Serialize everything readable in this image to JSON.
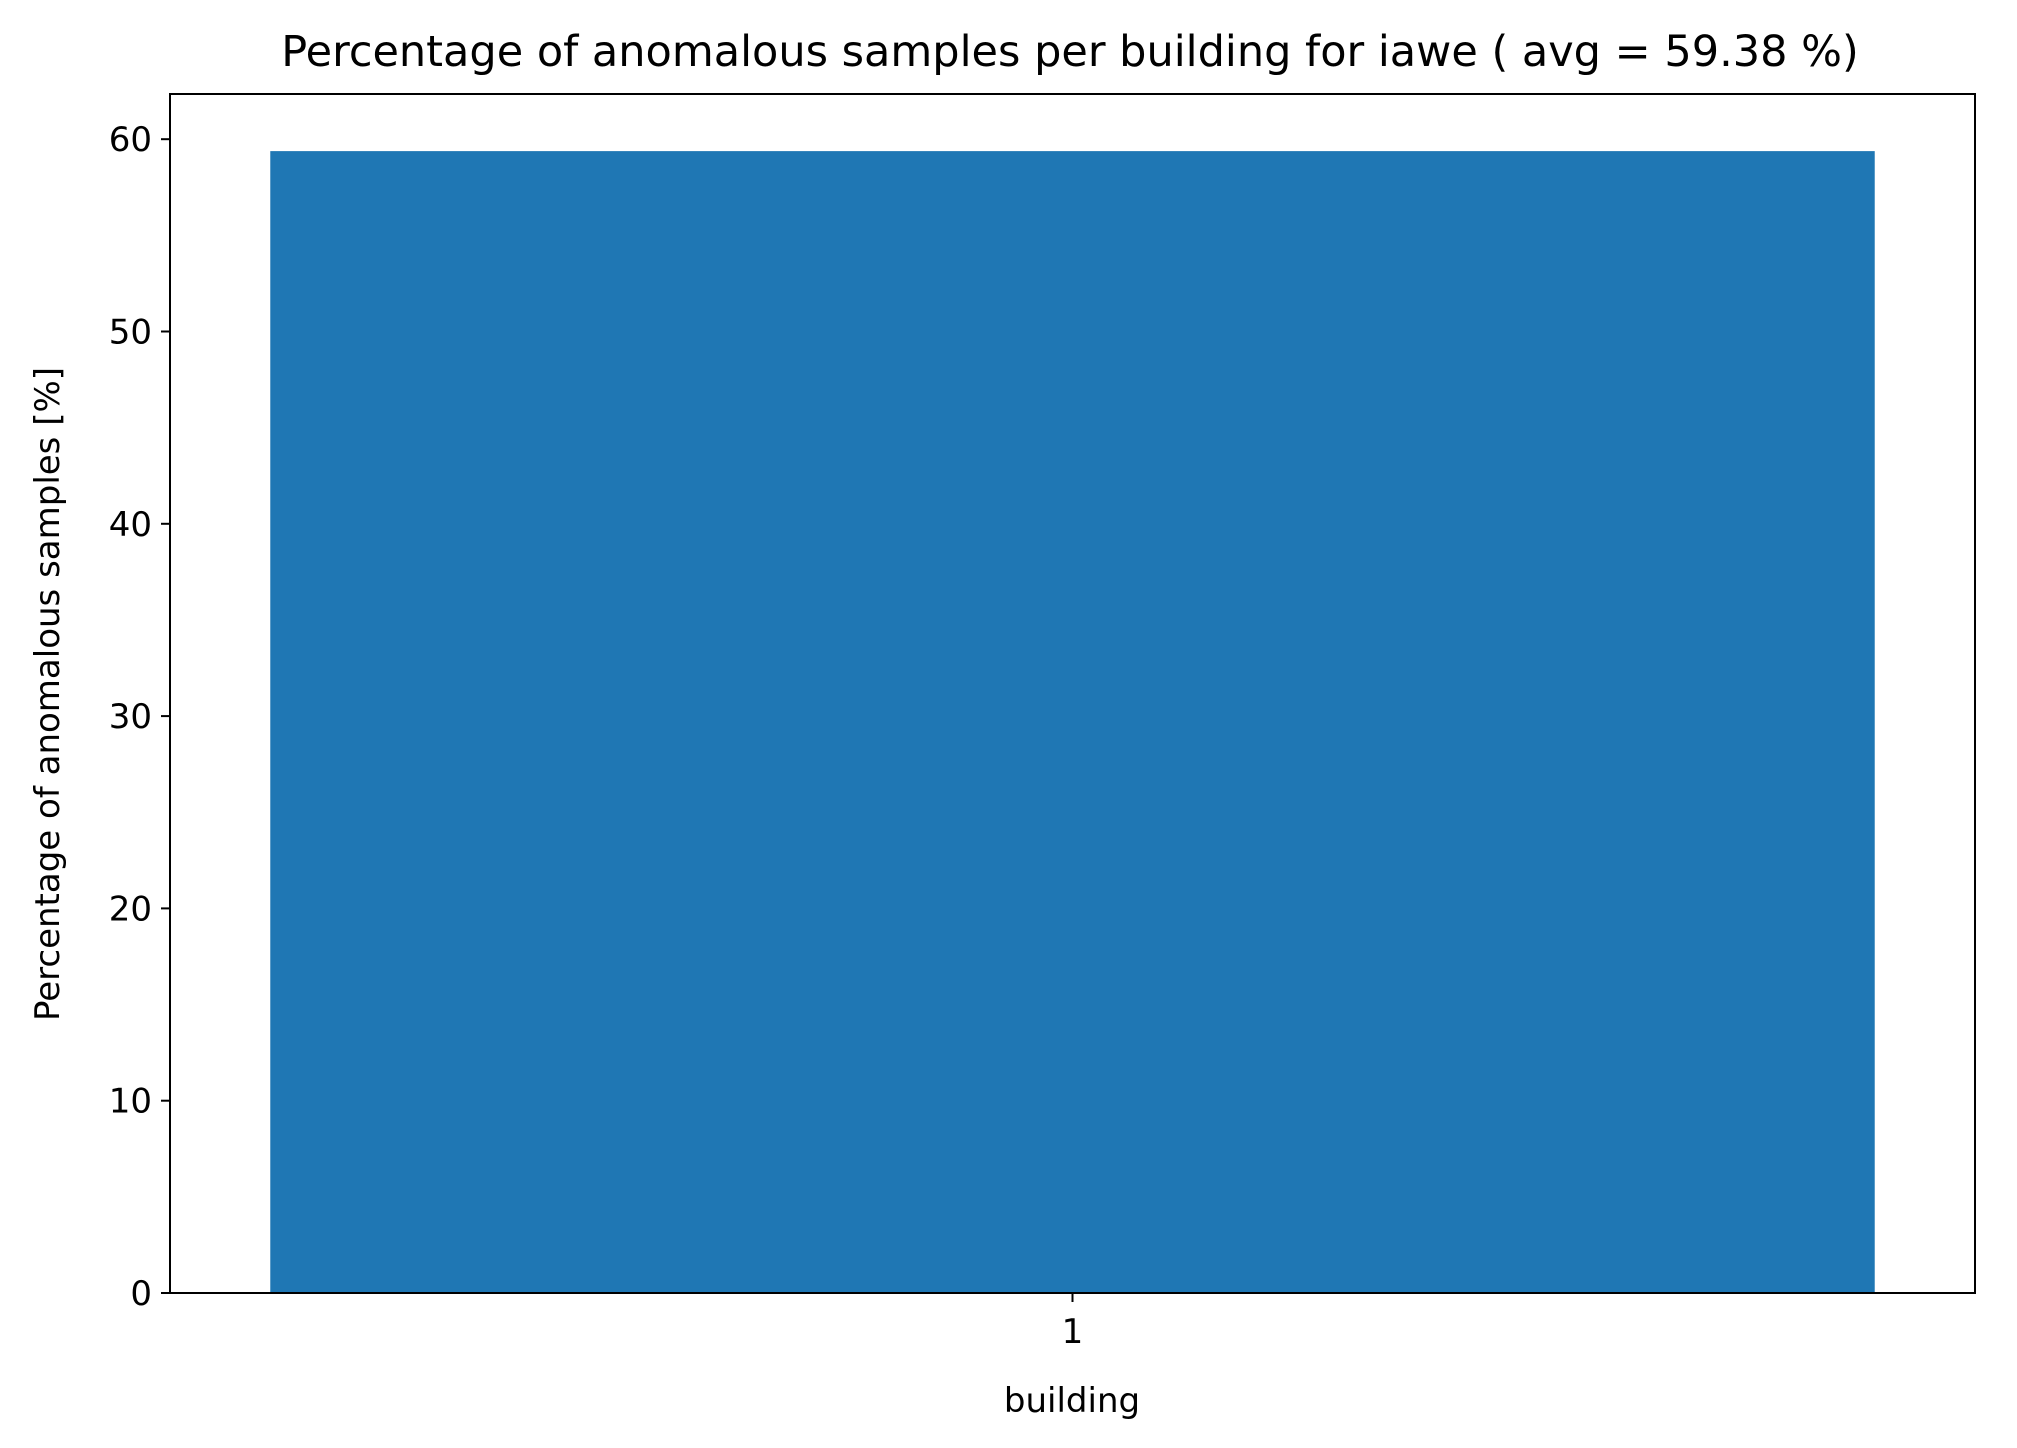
{
  "chart_data": {
    "type": "bar",
    "title": "Percentage of anomalous samples per building for iawe ( avg = 59.38 %)",
    "xlabel": "building",
    "ylabel": "Percentage of anomalous samples [%]",
    "categories": [
      "1"
    ],
    "values": [
      59.38
    ],
    "ylim": [
      0,
      62.35
    ],
    "yticks": [
      "0",
      "10",
      "20",
      "30",
      "40",
      "50",
      "60"
    ],
    "grid": false,
    "bar_color": "#1f77b4"
  }
}
